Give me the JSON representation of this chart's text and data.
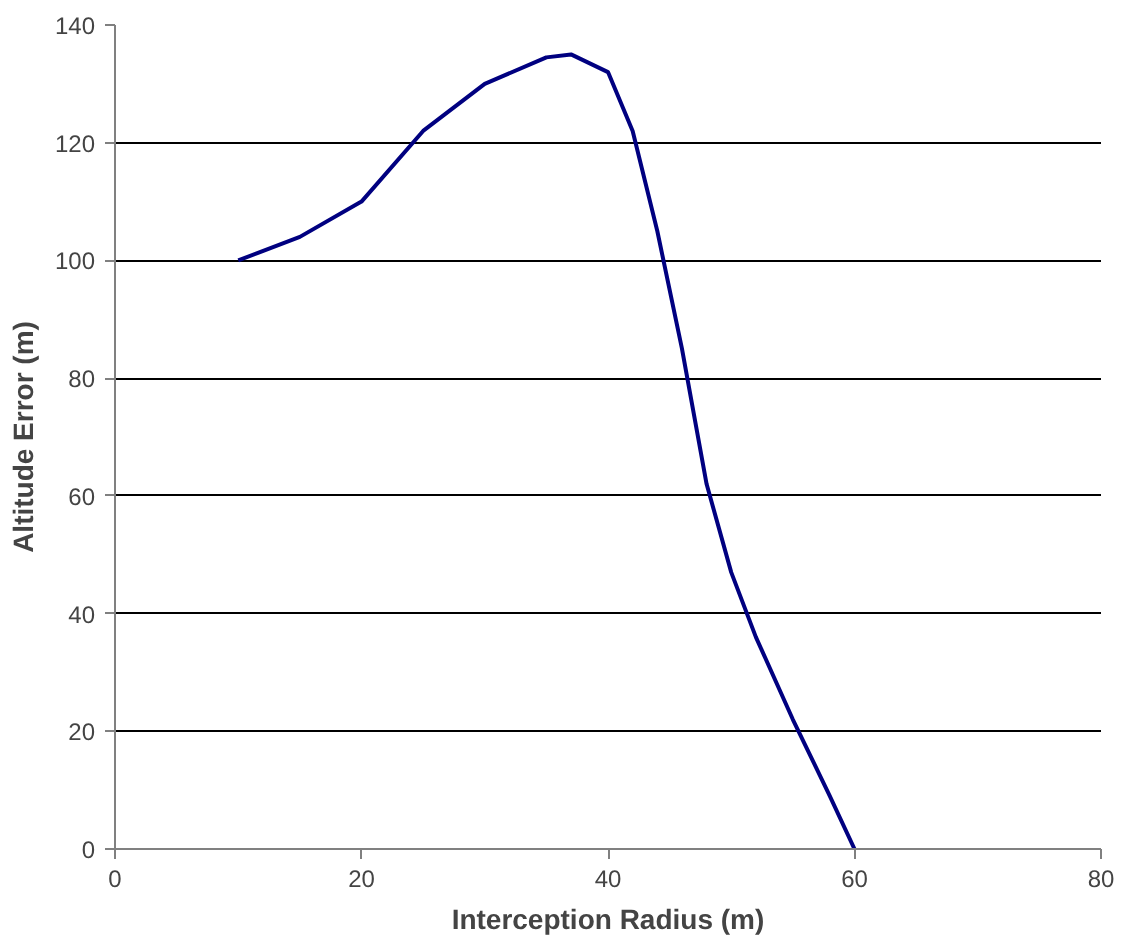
{
  "chart_data": {
    "type": "line",
    "xlabel": "Interception Radius (m)",
    "ylabel": "Altitude Error (m)",
    "x": [
      10,
      15,
      20,
      25,
      30,
      35,
      37,
      40,
      42,
      44,
      46,
      48,
      50,
      52,
      55,
      58,
      60
    ],
    "series": [
      {
        "color": "#000080",
        "values": [
          100,
          104,
          110,
          122,
          130,
          134.5,
          135,
          132,
          122,
          105,
          85,
          62,
          47,
          36,
          22,
          9,
          0
        ]
      }
    ],
    "xlim": [
      0,
      80
    ],
    "ylim": [
      0,
      140
    ],
    "xticks": [
      0,
      20,
      40,
      60,
      80
    ],
    "yticks": [
      0,
      20,
      40,
      60,
      80,
      100,
      120,
      140
    ],
    "grid": "y",
    "marker": "none",
    "line_style": "solid"
  }
}
